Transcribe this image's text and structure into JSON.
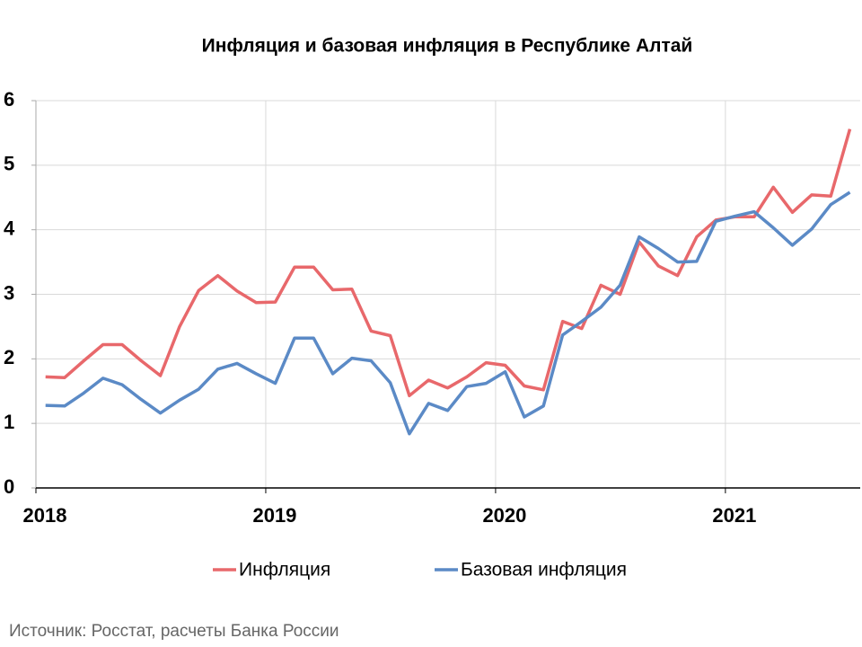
{
  "chart_data": {
    "type": "line",
    "title": "Инфляция и базовая инфляция в Республике Алтай",
    "source": "Источник: Росстат, расчеты Банка России",
    "categories": [
      "2018",
      null,
      null,
      null,
      null,
      null,
      null,
      null,
      null,
      null,
      null,
      null,
      "2019",
      null,
      null,
      null,
      null,
      null,
      null,
      null,
      null,
      null,
      null,
      null,
      "2020",
      null,
      null,
      null,
      null,
      null,
      null,
      null,
      null,
      null,
      null,
      null,
      "2021",
      null,
      null,
      null,
      null,
      null,
      null
    ],
    "series": [
      {
        "name": "Инфляция",
        "color": "#e8686b",
        "values": [
          1.72,
          1.71,
          1.97,
          2.22,
          2.22,
          1.97,
          1.74,
          2.5,
          3.06,
          3.29,
          3.05,
          2.87,
          2.88,
          3.42,
          3.42,
          3.07,
          3.08,
          2.43,
          2.36,
          1.43,
          1.67,
          1.55,
          1.72,
          1.94,
          1.9,
          1.58,
          1.52,
          2.58,
          2.47,
          3.14,
          3.0,
          3.81,
          3.44,
          3.29,
          3.89,
          4.15,
          4.2,
          4.2,
          4.66,
          4.27,
          4.54,
          4.52,
          5.56
        ]
      },
      {
        "name": "Базовая инфляция",
        "color": "#5b8ac6",
        "values": [
          1.28,
          1.27,
          1.47,
          1.7,
          1.6,
          1.37,
          1.16,
          1.36,
          1.53,
          1.84,
          1.93,
          1.77,
          1.62,
          2.32,
          2.32,
          1.77,
          2.01,
          1.97,
          1.63,
          0.84,
          1.31,
          1.2,
          1.57,
          1.62,
          1.8,
          1.1,
          1.27,
          2.37,
          2.58,
          2.8,
          3.14,
          3.89,
          3.71,
          3.5,
          3.51,
          4.13,
          4.21,
          4.28,
          4.03,
          3.76,
          4.01,
          4.39,
          4.58
        ]
      }
    ],
    "ylim": [
      0,
      6
    ],
    "yticks": [
      0,
      1,
      2,
      3,
      4,
      5,
      6
    ],
    "grid": true,
    "legend": "bottom"
  }
}
